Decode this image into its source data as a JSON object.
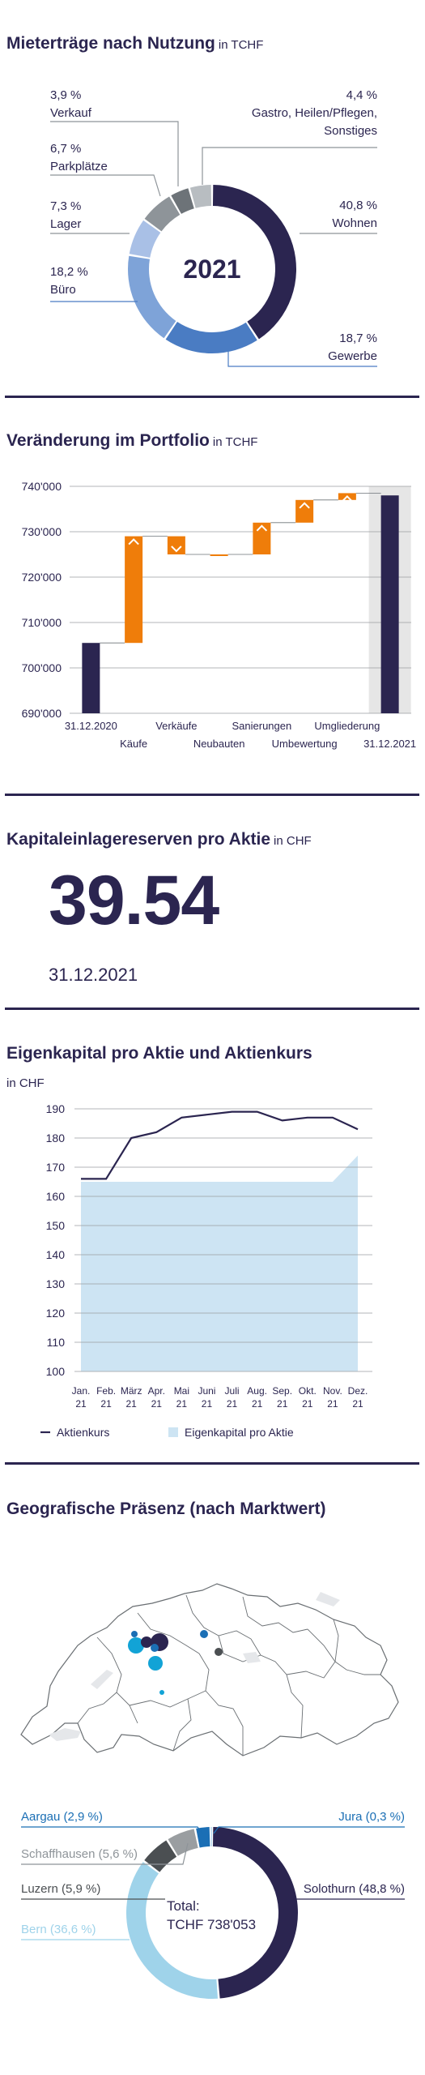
{
  "sections": {
    "rent": {
      "title": "Mieterträge nach Nutzung",
      "unit": "in TCHF"
    },
    "portfolio": {
      "title": "Veränderung im Portfolio",
      "unit": "in TCHF"
    },
    "reserves": {
      "title": "Kapitaleinlagereserven pro Aktie",
      "unit": "in CHF",
      "value": "39.54",
      "date": "31.12.2021"
    },
    "equity": {
      "title": "Eigenkapital pro Aktie und Aktienkurs",
      "unit": "in CHF"
    },
    "geo": {
      "title": "Geografische Präsenz (nach Marktwert)"
    }
  },
  "chart_data": [
    {
      "id": "rent",
      "type": "pie",
      "center_label": "2021",
      "slices": [
        {
          "label": "Wohnen",
          "pct_label": "40,8 %",
          "value": 40.8,
          "color": "#2b2550"
        },
        {
          "label": "Gewerbe",
          "pct_label": "18,7 %",
          "value": 18.7,
          "color": "#4a7cc3"
        },
        {
          "label": "Büro",
          "pct_label": "18,2 %",
          "value": 18.2,
          "color": "#7ea3d8"
        },
        {
          "label": "Lager",
          "pct_label": "7,3 %",
          "value": 7.3,
          "color": "#a9c0e6"
        },
        {
          "label": "Parkplätze",
          "pct_label": "6,7 %",
          "value": 6.7,
          "color": "#8e9499"
        },
        {
          "label": "Verkauf",
          "pct_label": "3,9 %",
          "value": 3.9,
          "color": "#6d7378"
        },
        {
          "label": "Gastro, Heilen/Pflegen, Sonstiges",
          "label_lines": [
            "Gastro, Heilen/Pflegen,",
            "Sonstiges"
          ],
          "pct_label": "4,4 %",
          "value": 4.4,
          "color": "#b8bdc1"
        }
      ]
    },
    {
      "id": "portfolio",
      "type": "bar",
      "ylim": [
        690000,
        740000
      ],
      "yticks": [
        "690'000",
        "700'000",
        "710'000",
        "720'000",
        "730'000",
        "740'000"
      ],
      "ytick_values": [
        690000,
        700000,
        710000,
        720000,
        730000,
        740000
      ],
      "bars": [
        {
          "label": "31.12.2020",
          "row": 1,
          "from": 690000,
          "to": 705500,
          "kind": "total"
        },
        {
          "label": "Käufe",
          "row": 2,
          "from": 705500,
          "to": 729000,
          "kind": "up"
        },
        {
          "label": "Verkäufe",
          "row": 1,
          "from": 729000,
          "to": 725000,
          "kind": "down"
        },
        {
          "label": "Neubauten",
          "row": 2,
          "from": 725000,
          "to": 725000,
          "kind": "up"
        },
        {
          "label": "Sanierungen",
          "row": 1,
          "from": 725000,
          "to": 732000,
          "kind": "up"
        },
        {
          "label": "Umbewertung",
          "row": 2,
          "from": 732000,
          "to": 737000,
          "kind": "up"
        },
        {
          "label": "Umgliederung",
          "row": 1,
          "from": 737000,
          "to": 738500,
          "kind": "up"
        },
        {
          "label": "31.12.2021",
          "row": 2,
          "from": 690000,
          "to": 738000,
          "kind": "total"
        }
      ],
      "colors": {
        "total": "#2b2550",
        "change": "#ef7d0a",
        "highlight": "#e6e6e6"
      }
    },
    {
      "id": "equity",
      "type": "line",
      "ylim": [
        100,
        190
      ],
      "yticks": [
        "100",
        "110",
        "120",
        "130",
        "140",
        "150",
        "160",
        "170",
        "180",
        "190"
      ],
      "ytick_values": [
        100,
        110,
        120,
        130,
        140,
        150,
        160,
        170,
        180,
        190
      ],
      "x_month": [
        "Jan.",
        "Feb.",
        "März",
        "Apr.",
        "Mai",
        "Juni",
        "Juli",
        "Aug.",
        "Sep.",
        "Okt.",
        "Nov.",
        "Dez."
      ],
      "x_year": [
        "21",
        "21",
        "21",
        "21",
        "21",
        "21",
        "21",
        "21",
        "21",
        "21",
        "21",
        "21"
      ],
      "series": [
        {
          "name": "Aktienkurs",
          "type": "line",
          "color": "#2b2550",
          "values": [
            166,
            166,
            180,
            182,
            187,
            188,
            189,
            189,
            186,
            187,
            187,
            183
          ]
        },
        {
          "name": "Eigenkapital pro Aktie",
          "type": "area",
          "color": "#cde4f3",
          "values": [
            165,
            165,
            165,
            165,
            165,
            165,
            165,
            165,
            165,
            165,
            165,
            174
          ]
        }
      ]
    },
    {
      "id": "geo",
      "type": "pie",
      "total_label": "Total:",
      "total_value": "TCHF 738'053",
      "slices": [
        {
          "label": "Solothurn",
          "pct_label": "(48,8 %)",
          "value": 48.8,
          "color": "#2b2550"
        },
        {
          "label": "Bern",
          "pct_label": "(36,6 %)",
          "value": 36.6,
          "color": "#9fd3ea"
        },
        {
          "label": "Luzern",
          "pct_label": "(5,9 %)",
          "value": 5.9,
          "color": "#4b4f52"
        },
        {
          "label": "Schaffhausen",
          "pct_label": "(5,6 %)",
          "value": 5.6,
          "color": "#9a9ea1"
        },
        {
          "label": "Aargau",
          "pct_label": "(2,9 %)",
          "value": 2.9,
          "color": "#1b6fb5"
        },
        {
          "label": "Jura",
          "pct_label": "(0,3 %)",
          "value": 0.3,
          "color": "#4f9fd6"
        }
      ]
    }
  ]
}
